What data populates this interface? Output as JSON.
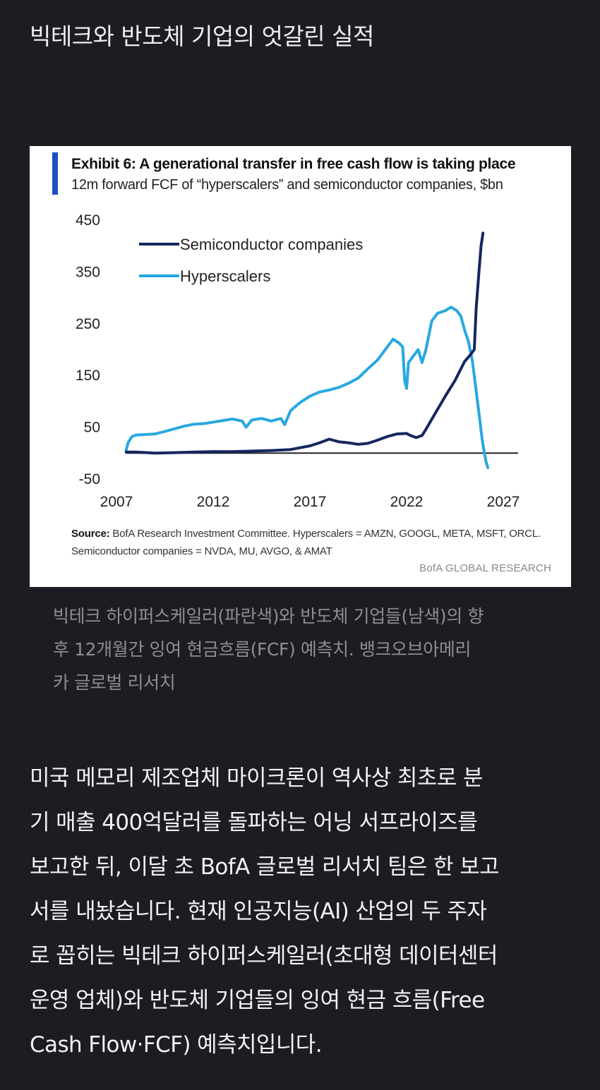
{
  "headline": "빅테크와 반도체 기업의 엇갈린 실적",
  "chart_data": {
    "type": "line",
    "title": "Exhibit 6: A generational transfer in free cash flow is taking place",
    "subtitle": "12m forward FCF of “hyperscalers” and semiconductor companies, $bn",
    "xlim": [
      2007,
      2027
    ],
    "ylim": [
      -50,
      450
    ],
    "x_ticks": [
      2007,
      2012,
      2017,
      2022,
      2027
    ],
    "y_ticks": [
      450,
      350,
      250,
      150,
      50,
      -50
    ],
    "legend_position": "top-left",
    "grid": false,
    "series": [
      {
        "name": "Semiconductor companies",
        "color": "#16275e",
        "points": [
          [
            2007.5,
            2
          ],
          [
            2008.0,
            2
          ],
          [
            2009.0,
            0
          ],
          [
            2010.0,
            1
          ],
          [
            2011.0,
            2
          ],
          [
            2012.0,
            3
          ],
          [
            2013.0,
            3
          ],
          [
            2014.0,
            4
          ],
          [
            2015.0,
            5
          ],
          [
            2016.0,
            7
          ],
          [
            2017.0,
            14
          ],
          [
            2017.5,
            20
          ],
          [
            2018.0,
            27
          ],
          [
            2018.5,
            22
          ],
          [
            2019.0,
            20
          ],
          [
            2019.5,
            17
          ],
          [
            2020.0,
            19
          ],
          [
            2020.5,
            25
          ],
          [
            2021.0,
            32
          ],
          [
            2021.5,
            37
          ],
          [
            2022.0,
            38
          ],
          [
            2022.2,
            34
          ],
          [
            2022.5,
            30
          ],
          [
            2022.8,
            34
          ],
          [
            2023.0,
            46
          ],
          [
            2023.5,
            78
          ],
          [
            2024.0,
            110
          ],
          [
            2024.5,
            140
          ],
          [
            2025.0,
            177
          ],
          [
            2025.3,
            190
          ],
          [
            2025.5,
            200
          ],
          [
            2025.6,
            280
          ],
          [
            2025.75,
            355
          ],
          [
            2025.85,
            400
          ],
          [
            2025.95,
            425
          ]
        ]
      },
      {
        "name": "Hyperscalers",
        "color": "#28a8e0",
        "points": [
          [
            2007.5,
            5
          ],
          [
            2007.6,
            20
          ],
          [
            2007.8,
            32
          ],
          [
            2008.0,
            35
          ],
          [
            2008.5,
            36
          ],
          [
            2009.0,
            37
          ],
          [
            2009.5,
            42
          ],
          [
            2010.0,
            47
          ],
          [
            2010.5,
            52
          ],
          [
            2011.0,
            56
          ],
          [
            2011.5,
            57
          ],
          [
            2012.0,
            60
          ],
          [
            2012.5,
            63
          ],
          [
            2013.0,
            66
          ],
          [
            2013.5,
            62
          ],
          [
            2013.7,
            50
          ],
          [
            2014.0,
            64
          ],
          [
            2014.5,
            67
          ],
          [
            2015.0,
            62
          ],
          [
            2015.5,
            67
          ],
          [
            2015.7,
            55
          ],
          [
            2016.0,
            82
          ],
          [
            2016.5,
            98
          ],
          [
            2017.0,
            110
          ],
          [
            2017.5,
            118
          ],
          [
            2018.0,
            122
          ],
          [
            2018.5,
            127
          ],
          [
            2019.0,
            135
          ],
          [
            2019.5,
            145
          ],
          [
            2020.0,
            163
          ],
          [
            2020.5,
            180
          ],
          [
            2021.0,
            205
          ],
          [
            2021.3,
            220
          ],
          [
            2021.6,
            213
          ],
          [
            2021.8,
            205
          ],
          [
            2021.9,
            140
          ],
          [
            2022.0,
            125
          ],
          [
            2022.1,
            175
          ],
          [
            2022.4,
            190
          ],
          [
            2022.6,
            200
          ],
          [
            2022.8,
            175
          ],
          [
            2023.0,
            200
          ],
          [
            2023.3,
            255
          ],
          [
            2023.6,
            270
          ],
          [
            2024.0,
            275
          ],
          [
            2024.3,
            282
          ],
          [
            2024.6,
            275
          ],
          [
            2024.8,
            265
          ],
          [
            2025.0,
            238
          ],
          [
            2025.2,
            215
          ],
          [
            2025.4,
            178
          ],
          [
            2025.6,
            120
          ],
          [
            2025.8,
            60
          ],
          [
            2025.9,
            28
          ],
          [
            2026.0,
            5
          ],
          [
            2026.1,
            -15
          ],
          [
            2026.2,
            -28
          ]
        ]
      }
    ],
    "source": {
      "label": "Source:",
      "line1": "BofA Research Investment Committee. Hyperscalers = AMZN, GOOGL, META, MSFT, ORCL.",
      "line2": "Semiconductor companies = NVDA, MU, AVGO, & AMAT"
    },
    "brand": "BofA GLOBAL RESEARCH"
  },
  "caption": [
    "빅테크 하이퍼스케일러(파란색)와 반도체 기업들(남색)의 향",
    "후 12개월간 잉여 현금흐름(FCF) 예측치. 뱅크오브아메리",
    "카 글로벌 리서치"
  ],
  "body": [
    "미국 메모리 제조업체 마이크론이 역사상 최초로 분",
    "기 매출 400억달러를 돌파하는 어닝 서프라이즈를",
    "보고한 뒤, 이달 초 BofA 글로벌 리서치 팀은 한 보고",
    "서를 내놨습니다. 현재 인공지능(AI) 산업의 두 주자",
    "로 꼽히는 빅테크 하이퍼스케일러(초대형 데이터센터",
    "운영 업체)와 반도체 기업들의 잉여 현금 흐름(Free",
    "Cash Flow·FCF) 예측치입니다."
  ]
}
